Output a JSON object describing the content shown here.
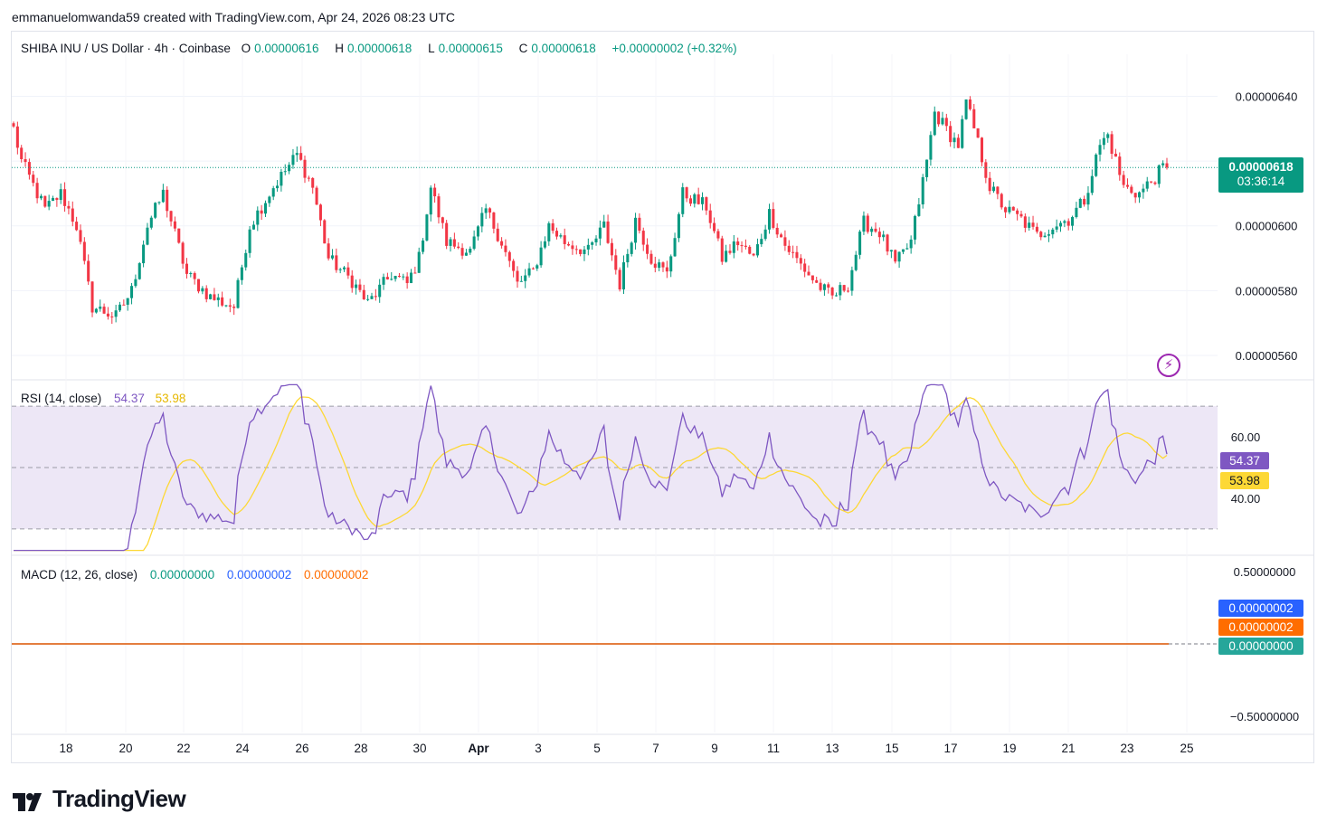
{
  "header": {
    "credit": "emmanuelomwanda59 created with TradingView.com, Apr 24, 2026 08:23 UTC"
  },
  "main_legend": {
    "symbol": "SHIBA INU / US Dollar · 4h · Coinbase",
    "o_label": "O",
    "o_value": "0.00000616",
    "h_label": "H",
    "h_value": "0.00000618",
    "l_label": "L",
    "l_value": "0.00000615",
    "c_label": "C",
    "c_value": "0.00000618",
    "change": "+0.00000002 (+0.32%)"
  },
  "price_badge": {
    "price": "0.00000618",
    "countdown": "03:36:14"
  },
  "rsi_legend": {
    "name": "RSI (14, close)",
    "rsi_value": "54.37",
    "ma_value": "53.98"
  },
  "macd_legend": {
    "name": "MACD (12, 26, close)",
    "hist_value": "0.00000000",
    "macd_value": "0.00000002",
    "signal_value": "0.00000002"
  },
  "macd_badges": {
    "macd": "0.00000002",
    "signal": "0.00000002",
    "hist": "0.00000000"
  },
  "branding": {
    "logo_text": "TradingView"
  },
  "colors": {
    "up": "#089981",
    "down": "#f23645",
    "rsi": "#7e57c2",
    "rsi_ma": "#fdd835",
    "macd": "#2962ff",
    "signal": "#ff6d00",
    "band": "#ede7f6"
  },
  "chart_data": [
    {
      "type": "candlestick",
      "title": "SHIBA INU / US Dollar · 4h · Coinbase",
      "ylim": [
        5.53e-06,
        6.53e-06
      ],
      "y_ticks": [
        "0.00000560",
        "0.00000580",
        "0.00000600",
        "0.00000620",
        "0.00000640"
      ],
      "x_ticks": [
        "18",
        "20",
        "22",
        "24",
        "26",
        "28",
        "30",
        "Apr",
        "3",
        "5",
        "7",
        "9",
        "11",
        "13",
        "15",
        "17",
        "19",
        "21",
        "23",
        "25"
      ],
      "last_close": 6.18e-06,
      "anchors": [
        [
          0,
          6.3
        ],
        [
          2,
          6.2
        ],
        [
          4,
          6.15
        ],
        [
          8,
          6.05
        ],
        [
          12,
          6.1
        ],
        [
          16,
          6.0
        ],
        [
          20,
          5.75
        ],
        [
          26,
          5.72
        ],
        [
          30,
          5.8
        ],
        [
          34,
          6.0
        ],
        [
          38,
          6.1
        ],
        [
          44,
          5.85
        ],
        [
          50,
          5.78
        ],
        [
          56,
          5.75
        ],
        [
          60,
          6.0
        ],
        [
          66,
          6.12
        ],
        [
          72,
          6.22
        ],
        [
          76,
          6.12
        ],
        [
          80,
          5.9
        ],
        [
          86,
          5.83
        ],
        [
          90,
          5.76
        ],
        [
          96,
          5.85
        ],
        [
          100,
          5.82
        ],
        [
          103,
          5.9
        ],
        [
          106,
          6.12
        ],
        [
          110,
          5.95
        ],
        [
          116,
          5.92
        ],
        [
          120,
          6.05
        ],
        [
          124,
          5.95
        ],
        [
          128,
          5.82
        ],
        [
          132,
          5.86
        ],
        [
          136,
          6.0
        ],
        [
          140,
          5.95
        ],
        [
          146,
          5.92
        ],
        [
          150,
          6.0
        ],
        [
          154,
          5.82
        ],
        [
          158,
          6.02
        ],
        [
          162,
          5.9
        ],
        [
          166,
          5.85
        ],
        [
          170,
          6.1
        ],
        [
          176,
          6.06
        ],
        [
          180,
          5.9
        ],
        [
          184,
          5.95
        ],
        [
          188,
          5.9
        ],
        [
          192,
          6.04
        ],
        [
          196,
          5.94
        ],
        [
          200,
          5.88
        ],
        [
          204,
          5.82
        ],
        [
          208,
          5.78
        ],
        [
          212,
          5.82
        ],
        [
          216,
          6.01
        ],
        [
          220,
          5.98
        ],
        [
          224,
          5.88
        ],
        [
          228,
          5.95
        ],
        [
          232,
          6.2
        ],
        [
          234,
          6.35
        ],
        [
          238,
          6.28
        ],
        [
          240,
          6.25
        ],
        [
          242,
          6.38
        ],
        [
          244,
          6.3
        ],
        [
          248,
          6.12
        ],
        [
          252,
          6.05
        ],
        [
          256,
          6.02
        ],
        [
          260,
          5.97
        ],
        [
          264,
          6.0
        ],
        [
          268,
          6.02
        ],
        [
          272,
          6.08
        ],
        [
          276,
          6.25
        ],
        [
          278,
          6.28
        ],
        [
          282,
          6.12
        ],
        [
          286,
          6.1
        ],
        [
          290,
          6.15
        ],
        [
          292,
          6.18
        ]
      ]
    },
    {
      "type": "line",
      "name": "RSI (14, close)",
      "ylim": [
        22,
        78
      ],
      "y_ticks": [
        "60.00",
        "40.00"
      ],
      "bands": [
        70,
        50,
        30
      ],
      "last_rsi": 54.37,
      "last_ma": 53.98
    },
    {
      "type": "line",
      "name": "MACD (12, 26, close)",
      "ylim": [
        -0.6,
        0.6
      ],
      "y_ticks": [
        "0.50000000",
        "−0.50000000"
      ],
      "values": {
        "macd": 2e-08,
        "signal": 2e-08,
        "histogram": 0.0
      }
    }
  ]
}
